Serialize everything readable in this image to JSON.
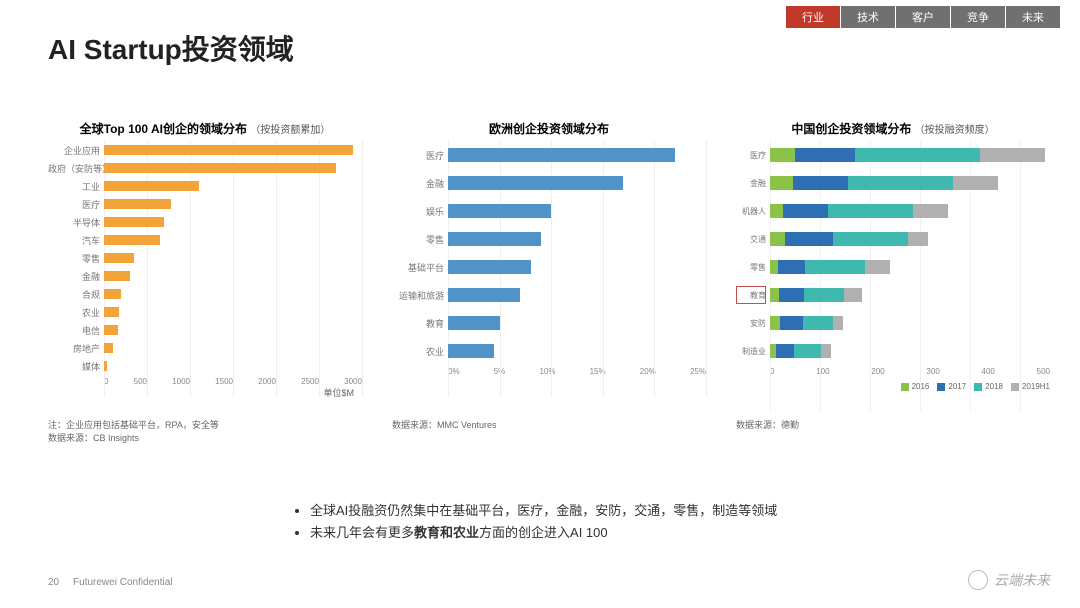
{
  "nav": {
    "items": [
      "行业",
      "技术",
      "客户",
      "竞争",
      "未来"
    ],
    "active_bg": "#c0392b",
    "inactive_bg": "#707070"
  },
  "title": "AI Startup投资领域",
  "chart1": {
    "title": "全球Top 100 AI创企的领域分布",
    "subtitle": "（按投资额累加）",
    "categories": [
      "企业应用",
      "政府（安防等）",
      "工业",
      "医疗",
      "半导体",
      "汽车",
      "零售",
      "金融",
      "合规",
      "农业",
      "电信",
      "房地产",
      "媒体"
    ],
    "values": [
      2900,
      2700,
      1100,
      780,
      700,
      650,
      350,
      300,
      200,
      180,
      160,
      100,
      40
    ],
    "bar_color": "#f2a43a",
    "xmax": 3000,
    "xticks": [
      0,
      500,
      1000,
      1500,
      2000,
      2500,
      3000
    ],
    "xlabel": "单位$M",
    "note1": "注：企业应用包括基础平台，RPA，安全等",
    "source": "数据来源：CB Insights",
    "label_color": "#888888",
    "grid_color": "#eeeeee"
  },
  "chart2": {
    "title": "欧洲创企投资领域分布",
    "categories": [
      "医疗",
      "金融",
      "娱乐",
      "零售",
      "基础平台",
      "运输和旅游",
      "教育",
      "农业"
    ],
    "values": [
      22,
      17,
      10,
      9,
      8,
      7,
      5,
      4.5
    ],
    "bar_color": "#4f93c9",
    "xmax": 25,
    "xticks_labels": [
      "0%",
      "5%",
      "10%",
      "15%",
      "20%",
      "25%"
    ],
    "xticks": [
      0,
      5,
      10,
      15,
      20,
      25
    ],
    "source": "数据来源：MMC Ventures",
    "grid_color": "#eeeeee"
  },
  "chart3": {
    "title": "中国创企投资领域分布",
    "subtitle": "（按投融资频度）",
    "categories": [
      "医疗",
      "金融",
      "机器人",
      "交通",
      "零售",
      "教育",
      "安防",
      "制造业"
    ],
    "series": [
      {
        "name": "2016",
        "color": "#8bc34a",
        "values": [
          50,
          45,
          25,
          30,
          15,
          18,
          20,
          12
        ]
      },
      {
        "name": "2017",
        "color": "#2e6fb4",
        "values": [
          120,
          110,
          90,
          95,
          55,
          50,
          45,
          35
        ]
      },
      {
        "name": "2018",
        "color": "#3fb8af",
        "values": [
          250,
          210,
          170,
          150,
          120,
          80,
          60,
          55
        ]
      },
      {
        "name": "2019H1",
        "color": "#b0b0b0",
        "values": [
          130,
          90,
          70,
          40,
          50,
          35,
          20,
          20
        ]
      }
    ],
    "xmax": 560,
    "xticks": [
      0,
      100,
      200,
      300,
      400,
      500
    ],
    "source": "数据来源：德勤",
    "highlight_index": 5,
    "grid_color": "#f0f0f0"
  },
  "bullets": [
    "全球AI投融资仍然集中在基础平台，医疗，金融，安防，交通，零售，制造等领域",
    "未来几年会有更多<b>教育和农业</b>方面的创企进入AI 100"
  ],
  "footer": {
    "page": "20",
    "label": "Futurewei Confidential"
  },
  "watermark": "云端未来"
}
